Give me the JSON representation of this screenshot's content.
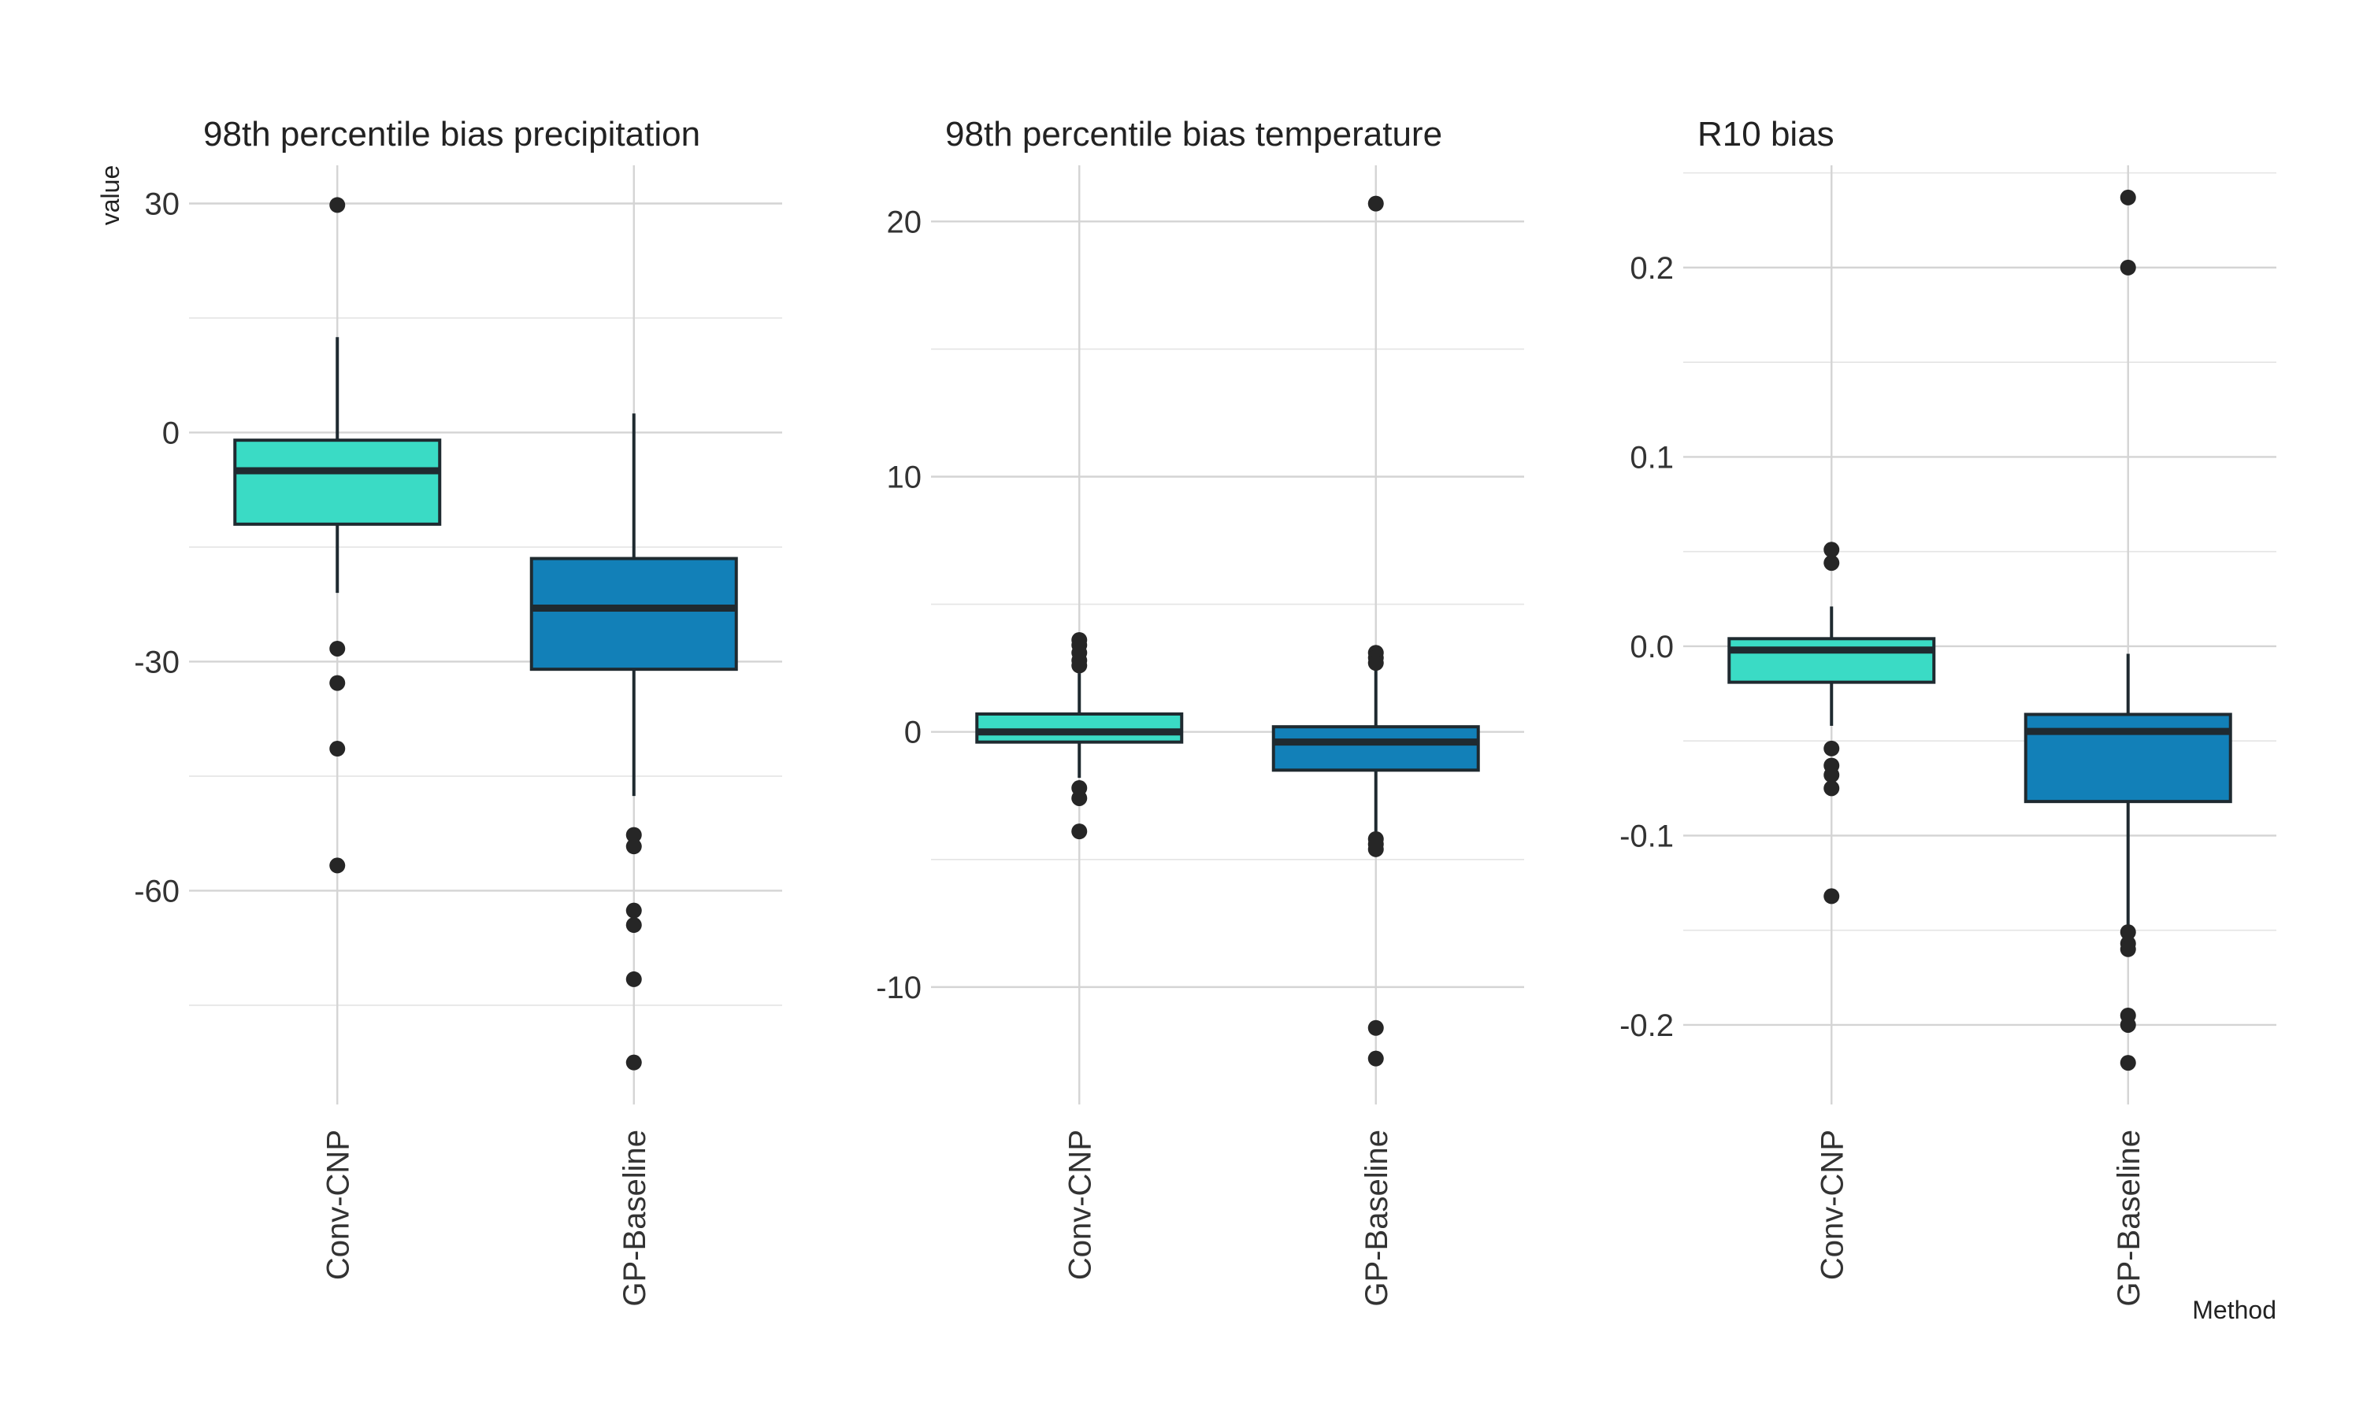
{
  "colors": {
    "Conv-CNP": "#3adbc5",
    "GP-Baseline": "#1280b8",
    "outline": "#1f2a30",
    "median": "#1f2a30",
    "outlier": "#262626"
  },
  "chart_data": [
    {
      "type": "box",
      "title": "98th percentile bias precipitation",
      "ylabel": "value",
      "xlabel": "",
      "ylim": [
        -88,
        35
      ],
      "major_ticks": [
        30,
        0,
        -30,
        -60
      ],
      "tick_labels": [
        "30",
        "0",
        "-30",
        "-60"
      ],
      "minor_ticks": [
        15,
        -15,
        -45,
        -75
      ],
      "categories": [
        "Conv-CNP",
        "GP-Baseline"
      ],
      "boxes": [
        {
          "name": "Conv-CNP",
          "whisker_low": -21,
          "q1": -12,
          "median": -5,
          "q3": -1,
          "whisker_high": 12.5,
          "outliers": [
            29.8,
            -28.3,
            -32.8,
            -41.4,
            -56.7
          ]
        },
        {
          "name": "GP-Baseline",
          "whisker_low": -47.6,
          "q1": -31,
          "median": -23,
          "q3": -16.5,
          "whisker_high": 2.5,
          "outliers": [
            -52.7,
            -54.2,
            -62.6,
            -64.5,
            -71.6,
            -82.5
          ]
        }
      ]
    },
    {
      "type": "box",
      "title": "98th percentile bias temperature",
      "ylabel": "",
      "xlabel": "",
      "ylim": [
        -14.6,
        22.2
      ],
      "major_ticks": [
        20,
        10,
        0,
        -10
      ],
      "tick_labels": [
        "20",
        "10",
        "0",
        "-10"
      ],
      "minor_ticks": [
        15,
        5,
        -5
      ],
      "categories": [
        "Conv-CNP",
        "GP-Baseline"
      ],
      "boxes": [
        {
          "name": "Conv-CNP",
          "whisker_low": -1.8,
          "q1": -0.4,
          "median": 0,
          "q3": 0.7,
          "whisker_high": 2.3,
          "outliers": [
            3.6,
            3.4,
            3.1,
            2.8,
            2.6,
            -2.2,
            -2.6,
            -3.9
          ]
        },
        {
          "name": "GP-Baseline",
          "whisker_low": -3.9,
          "q1": -1.5,
          "median": -0.4,
          "q3": 0.2,
          "whisker_high": 2.6,
          "outliers": [
            20.7,
            3.1,
            2.9,
            2.7,
            -4.2,
            -4.4,
            -4.6,
            -11.6,
            -12.8
          ]
        }
      ]
    },
    {
      "type": "box",
      "title": "R10 bias",
      "ylabel": "",
      "xlabel": "Method",
      "ylim": [
        -0.242,
        0.254
      ],
      "major_ticks": [
        0.2,
        0.1,
        0.0,
        -0.1,
        -0.2
      ],
      "tick_labels": [
        "0.2",
        "0.1",
        "0.0",
        "-0.1",
        "-0.2"
      ],
      "minor_ticks": [
        0.25,
        0.15,
        0.05,
        -0.05,
        -0.15
      ],
      "categories": [
        "Conv-CNP",
        "GP-Baseline"
      ],
      "boxes": [
        {
          "name": "Conv-CNP",
          "whisker_low": -0.042,
          "q1": -0.019,
          "median": -0.002,
          "q3": 0.004,
          "whisker_high": 0.021,
          "outliers": [
            0.051,
            0.044,
            -0.054,
            -0.063,
            -0.068,
            -0.075,
            -0.132
          ]
        },
        {
          "name": "GP-Baseline",
          "whisker_low": -0.148,
          "q1": -0.082,
          "median": -0.045,
          "q3": -0.036,
          "whisker_high": -0.004,
          "outliers": [
            0.237,
            0.2,
            -0.151,
            -0.157,
            -0.16,
            -0.195,
            -0.2,
            -0.22
          ]
        }
      ]
    }
  ]
}
